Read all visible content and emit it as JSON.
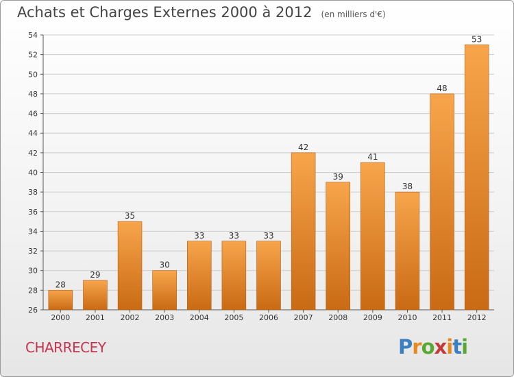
{
  "title": "Achats et Charges Externes 2000 à 2012",
  "subtitle": "(en milliers d'€)",
  "commune": "CHARRECEY",
  "logo": {
    "letters": [
      "P",
      "r",
      "o",
      "x",
      "i",
      "t",
      "i"
    ],
    "colors": [
      "#3a7fc1",
      "#e8891e",
      "#5aa832",
      "#c33a3a",
      "#e8891e",
      "#3a7fc1",
      "#5aa832"
    ]
  },
  "colors": {
    "bar_top": "#f7a54c",
    "bar_bottom": "#c96a14",
    "grid": "#cccccc",
    "text": "#333333"
  },
  "chart_data": {
    "type": "bar",
    "title": "Achats et Charges Externes 2000 à 2012",
    "subtitle": "(en milliers d'€)",
    "categories": [
      "2000",
      "2001",
      "2002",
      "2003",
      "2004",
      "2005",
      "2006",
      "2007",
      "2008",
      "2009",
      "2010",
      "2011",
      "2012"
    ],
    "values": [
      28,
      29,
      35,
      30,
      33,
      33,
      33,
      42,
      39,
      41,
      38,
      48,
      53
    ],
    "ylim": [
      26,
      54
    ],
    "yticks": [
      26,
      28,
      30,
      32,
      34,
      36,
      38,
      40,
      42,
      44,
      46,
      48,
      50,
      52,
      54
    ],
    "grid": true,
    "data_labels": true
  }
}
